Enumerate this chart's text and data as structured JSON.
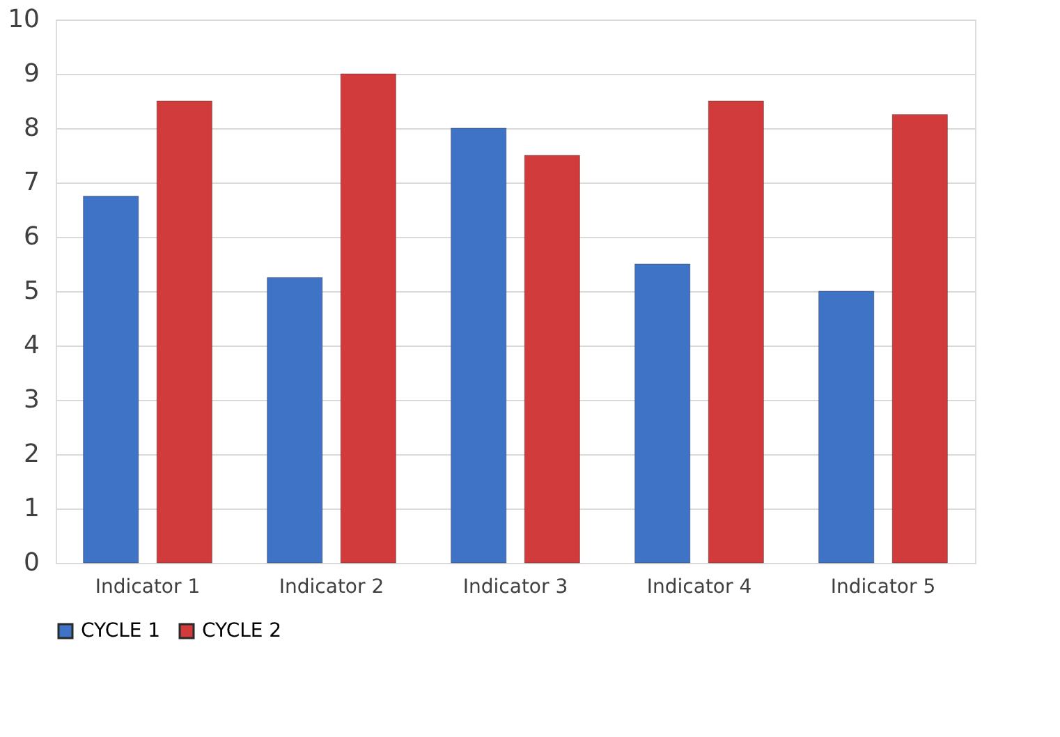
{
  "chart_data": {
    "type": "bar",
    "categories": [
      "Indicator 1",
      "Indicator 2",
      "Indicator 3",
      "Indicator 4",
      "Indicator 5"
    ],
    "series": [
      {
        "name": "CYCLE 1",
        "color": "#3f73c5",
        "values": [
          6.75,
          5.25,
          8,
          5.5,
          5
        ]
      },
      {
        "name": "CYCLE 2",
        "color": "#d13b3b",
        "values": [
          8.5,
          9,
          7.5,
          8.5,
          8.25
        ]
      }
    ],
    "ylim": [
      0,
      10
    ],
    "yticks": [
      0,
      1,
      2,
      3,
      4,
      5,
      6,
      7,
      8,
      9,
      10
    ],
    "grid": "y",
    "legend": "bottom"
  }
}
